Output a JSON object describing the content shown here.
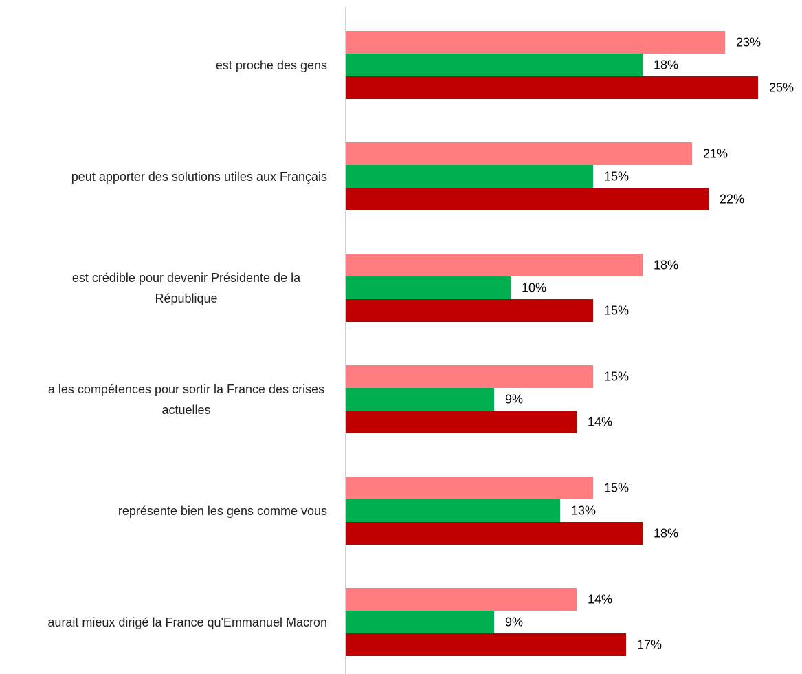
{
  "chart_data": {
    "type": "bar",
    "orientation": "horizontal",
    "categories": [
      "est proche des gens",
      "peut apporter des solutions utiles aux Français",
      "est crédible pour devenir Présidente de la République",
      "a les compétences pour sortir la France des crises actuelles",
      "représente bien les gens comme vous",
      "aurait mieux dirigé la France qu'Emmanuel Macron"
    ],
    "series": [
      {
        "color": "#ff7c80",
        "values": [
          23,
          21,
          18,
          15,
          15,
          14
        ],
        "value_labels": [
          "23%",
          "21%",
          "18%",
          "15%",
          "15%",
          "14%"
        ]
      },
      {
        "color": "#00b050",
        "values": [
          18,
          15,
          10,
          9,
          13,
          9
        ],
        "value_labels": [
          "18%",
          "15%",
          "10%",
          "9%",
          "13%",
          "9%"
        ]
      },
      {
        "color": "#c00000",
        "values": [
          25,
          22,
          15,
          14,
          18,
          17
        ],
        "value_labels": [
          "25%",
          "22%",
          "15%",
          "14%",
          "18%",
          "17%"
        ]
      }
    ],
    "xlim": [
      0,
      25
    ]
  }
}
